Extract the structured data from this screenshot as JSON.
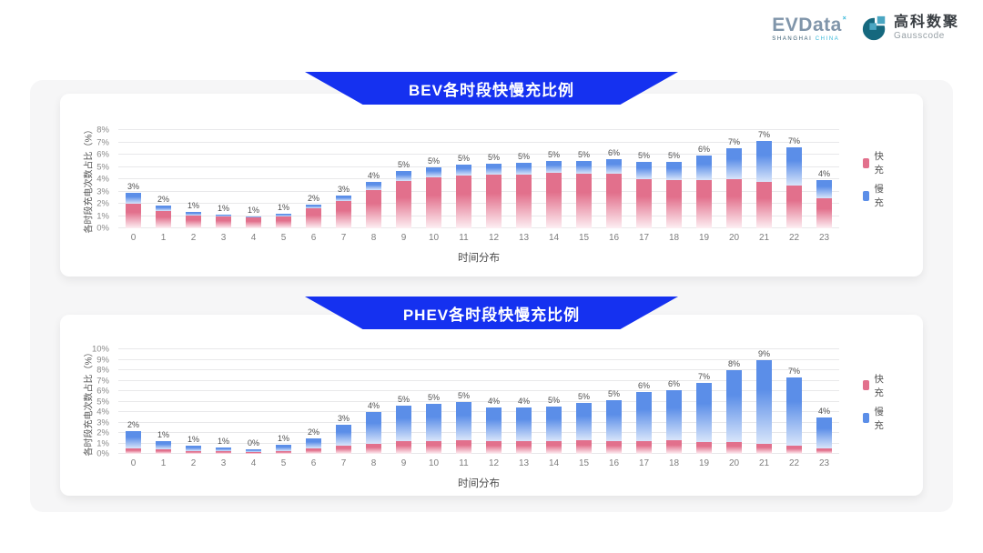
{
  "header": {
    "evdata": {
      "brand": "EVData",
      "superscript": "˟",
      "subtext_left": "SHANGHAI",
      "subtext_right": "CHINA"
    },
    "gausscode": {
      "name_cn": "高科数聚",
      "name_en": "Gausscode"
    }
  },
  "colors": {
    "banner_blue": "#1531f0",
    "fast_pink": "#e2708c",
    "slow_blue": "#5b8ee8",
    "panel_bg": "#f6f6f7",
    "card_bg": "#ffffff"
  },
  "chart_data": [
    {
      "type": "bar",
      "stacked": true,
      "title": "BEV各时段快慢充比例",
      "xlabel": "时间分布",
      "ylabel": "各时段充电次数占比（%）",
      "ylim": [
        0,
        8
      ],
      "grid": true,
      "legend_position": "right",
      "ytick_labels": [
        "0%",
        "1%",
        "2%",
        "3%",
        "4%",
        "5%",
        "6%",
        "7%",
        "8%"
      ],
      "categories": [
        "0",
        "1",
        "2",
        "3",
        "4",
        "5",
        "6",
        "7",
        "8",
        "9",
        "10",
        "11",
        "12",
        "13",
        "14",
        "15",
        "16",
        "17",
        "18",
        "19",
        "20",
        "21",
        "22",
        "23"
      ],
      "series": [
        {
          "name": "快充",
          "color": "#e2708c",
          "fade": "#fdeff3",
          "values": [
            2.0,
            1.4,
            1.05,
            0.95,
            0.9,
            1.0,
            1.6,
            2.2,
            3.1,
            3.85,
            4.15,
            4.3,
            4.35,
            4.4,
            4.5,
            4.45,
            4.45,
            4.0,
            3.95,
            3.95,
            4.0,
            3.9,
            3.5,
            2.45
          ]
        },
        {
          "name": "慢充",
          "color": "#5b8ee8",
          "fade": "#d8e5fa",
          "values": [
            0.9,
            0.45,
            0.3,
            0.2,
            0.1,
            0.2,
            0.3,
            0.5,
            0.7,
            0.85,
            0.85,
            0.85,
            0.9,
            0.9,
            0.95,
            1.0,
            1.15,
            1.4,
            1.45,
            1.95,
            2.5,
            3.4,
            3.1,
            1.45
          ]
        }
      ],
      "bar_total_labels": [
        "3%",
        "2%",
        "1%",
        "1%",
        "1%",
        "1%",
        "2%",
        "3%",
        "4%",
        "5%",
        "5%",
        "5%",
        "5%",
        "5%",
        "5%",
        "5%",
        "6%",
        "5%",
        "5%",
        "6%",
        "7%",
        "7%",
        "7%",
        "4%"
      ]
    },
    {
      "type": "bar",
      "stacked": true,
      "title": "PHEV各时段快慢充比例",
      "xlabel": "时间分布",
      "ylabel": "各时段充电次数占比（%）",
      "ylim": [
        0,
        10
      ],
      "grid": true,
      "legend_position": "right",
      "ytick_labels": [
        "0%",
        "1%",
        "2%",
        "3%",
        "4%",
        "5%",
        "6%",
        "7%",
        "8%",
        "9%",
        "10%"
      ],
      "categories": [
        "0",
        "1",
        "2",
        "3",
        "4",
        "5",
        "6",
        "7",
        "8",
        "9",
        "10",
        "11",
        "12",
        "13",
        "14",
        "15",
        "16",
        "17",
        "18",
        "19",
        "20",
        "21",
        "22",
        "23"
      ],
      "series": [
        {
          "name": "快充",
          "color": "#e2708c",
          "fade": "#fdeff3",
          "values": [
            0.5,
            0.4,
            0.3,
            0.25,
            0.2,
            0.3,
            0.55,
            0.75,
            1.0,
            1.2,
            1.25,
            1.3,
            1.2,
            1.2,
            1.25,
            1.3,
            1.25,
            1.25,
            1.3,
            1.15,
            1.1,
            1.0,
            0.8,
            0.5
          ]
        },
        {
          "name": "慢充",
          "color": "#5b8ee8",
          "fade": "#d8e5fa",
          "values": [
            1.7,
            0.8,
            0.5,
            0.4,
            0.25,
            0.6,
            0.95,
            2.05,
            3.0,
            3.4,
            3.55,
            3.7,
            3.2,
            3.25,
            3.25,
            3.6,
            3.85,
            4.65,
            4.8,
            5.65,
            6.9,
            8.0,
            6.5,
            3.0
          ]
        }
      ],
      "bar_total_labels": [
        "2%",
        "1%",
        "1%",
        "1%",
        "0%",
        "1%",
        "2%",
        "3%",
        "4%",
        "5%",
        "5%",
        "5%",
        "4%",
        "4%",
        "5%",
        "5%",
        "5%",
        "6%",
        "6%",
        "7%",
        "8%",
        "9%",
        "7%",
        "4%"
      ]
    }
  ]
}
